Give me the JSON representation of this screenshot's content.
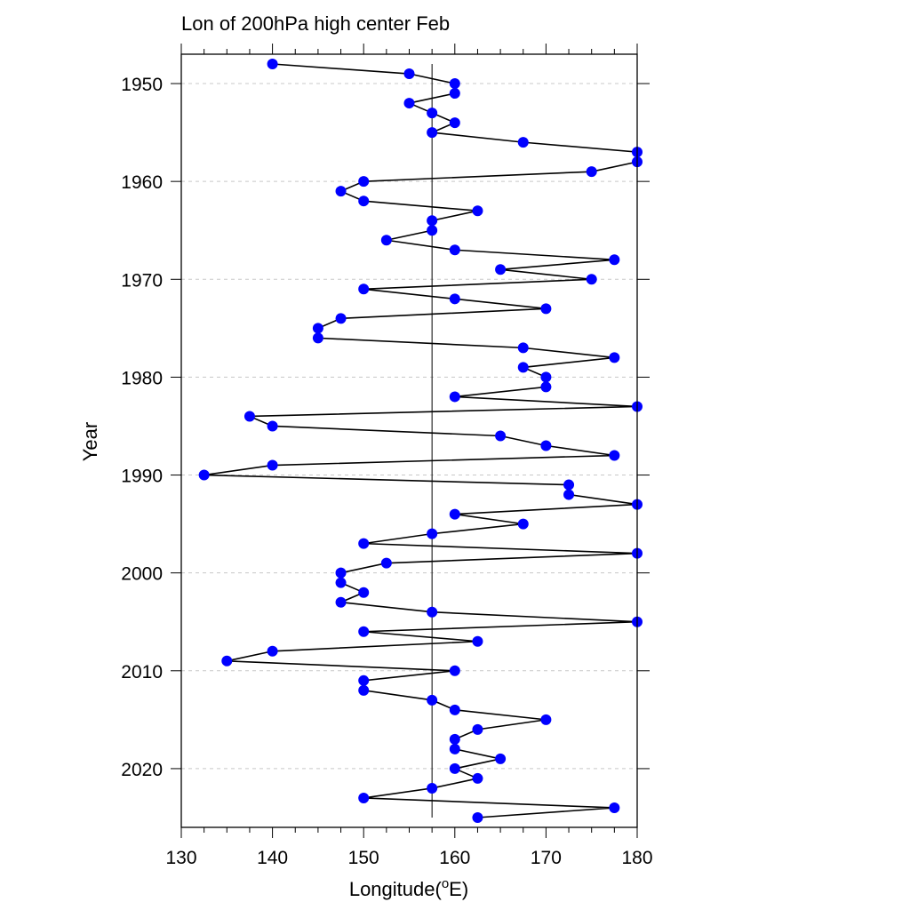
{
  "chart_data": {
    "type": "line",
    "title": "Lon of 200hPa high center Feb",
    "xlabel": "Longitude(",
    "xlabel_sup": "o",
    "xlabel_unit": "E)",
    "ylabel": "Year",
    "xlim": [
      130,
      180
    ],
    "ylim": [
      1947,
      2026
    ],
    "y_reversed": true,
    "x_ticks": [
      130,
      140,
      150,
      160,
      170,
      180
    ],
    "y_ticks": [
      1950,
      1960,
      1970,
      1980,
      1990,
      2000,
      2010,
      2020
    ],
    "grid": "horizontal dashed at major y ticks",
    "reference_line_x": 157.5,
    "marker_color": "#0000ff",
    "line_color": "#000000",
    "series": [
      {
        "years": [
          1948,
          1949,
          1950,
          1951,
          1952,
          1953,
          1954,
          1955,
          1956,
          1957,
          1958,
          1959,
          1960,
          1961,
          1962,
          1963,
          1964,
          1965,
          1966,
          1967,
          1968,
          1969,
          1970,
          1971,
          1972,
          1973,
          1974,
          1975,
          1976,
          1977,
          1978,
          1979,
          1980,
          1981,
          1982,
          1983,
          1984,
          1985,
          1986,
          1987,
          1988,
          1989,
          1990,
          1991,
          1992,
          1993,
          1994,
          1995,
          1996,
          1997,
          1998,
          1999,
          2000,
          2001,
          2002,
          2003,
          2004,
          2005,
          2006,
          2007,
          2008,
          2009,
          2010,
          2011,
          2012,
          2013,
          2014,
          2015,
          2016,
          2017,
          2018,
          2019,
          2020,
          2021,
          2022,
          2023,
          2024,
          2025
        ],
        "lons": [
          140,
          155,
          160,
          160,
          155,
          157.5,
          160,
          157.5,
          167.5,
          180,
          180,
          175,
          150,
          147.5,
          150,
          162.5,
          157.5,
          157.5,
          152.5,
          160,
          177.5,
          165,
          175,
          150,
          160,
          170,
          147.5,
          145,
          145,
          167.5,
          177.5,
          167.5,
          170,
          170,
          160,
          180,
          137.5,
          140,
          165,
          170,
          177.5,
          140,
          132.5,
          172.5,
          172.5,
          180,
          160,
          167.5,
          157.5,
          150,
          180,
          152.5,
          147.5,
          147.5,
          150,
          147.5,
          157.5,
          180,
          150,
          162.5,
          140,
          135,
          160,
          150,
          150,
          157.5,
          160,
          170,
          162.5,
          160,
          160,
          165,
          160,
          162.5,
          157.5,
          150,
          177.5,
          162.5
        ]
      }
    ]
  }
}
